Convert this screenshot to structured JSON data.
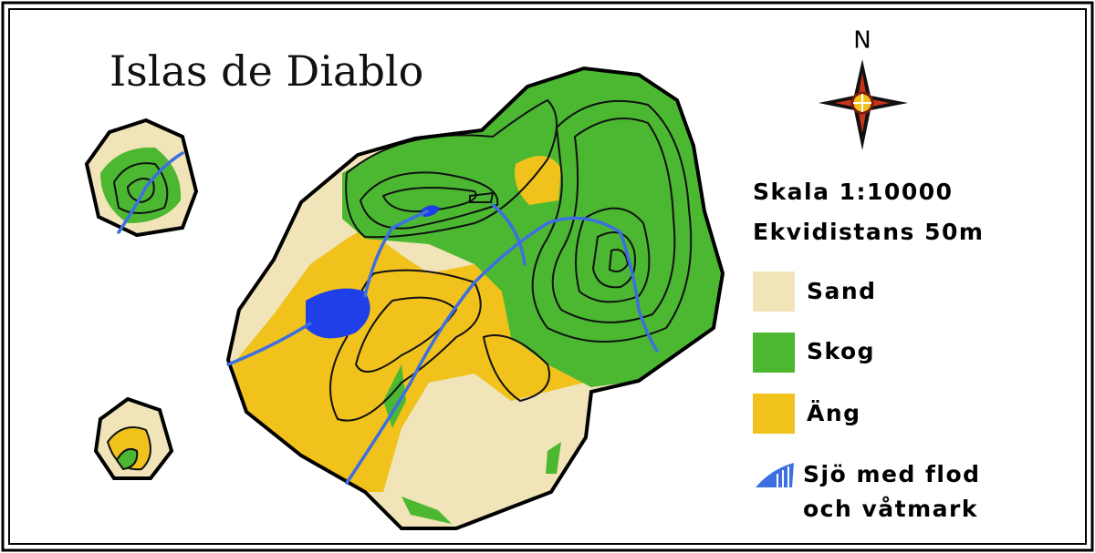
{
  "map": {
    "title": "Islas de Diablo",
    "compass": "N",
    "scale": "Skala 1:10000",
    "contour_interval": "Ekvidistans 50m",
    "legend": [
      {
        "label": [
          "Sand"
        ]
      },
      {
        "label": [
          "Skog"
        ]
      },
      {
        "label": [
          "Äng"
        ]
      },
      {
        "label": [
          "Sjö med flod",
          "och våtmark"
        ]
      }
    ]
  }
}
